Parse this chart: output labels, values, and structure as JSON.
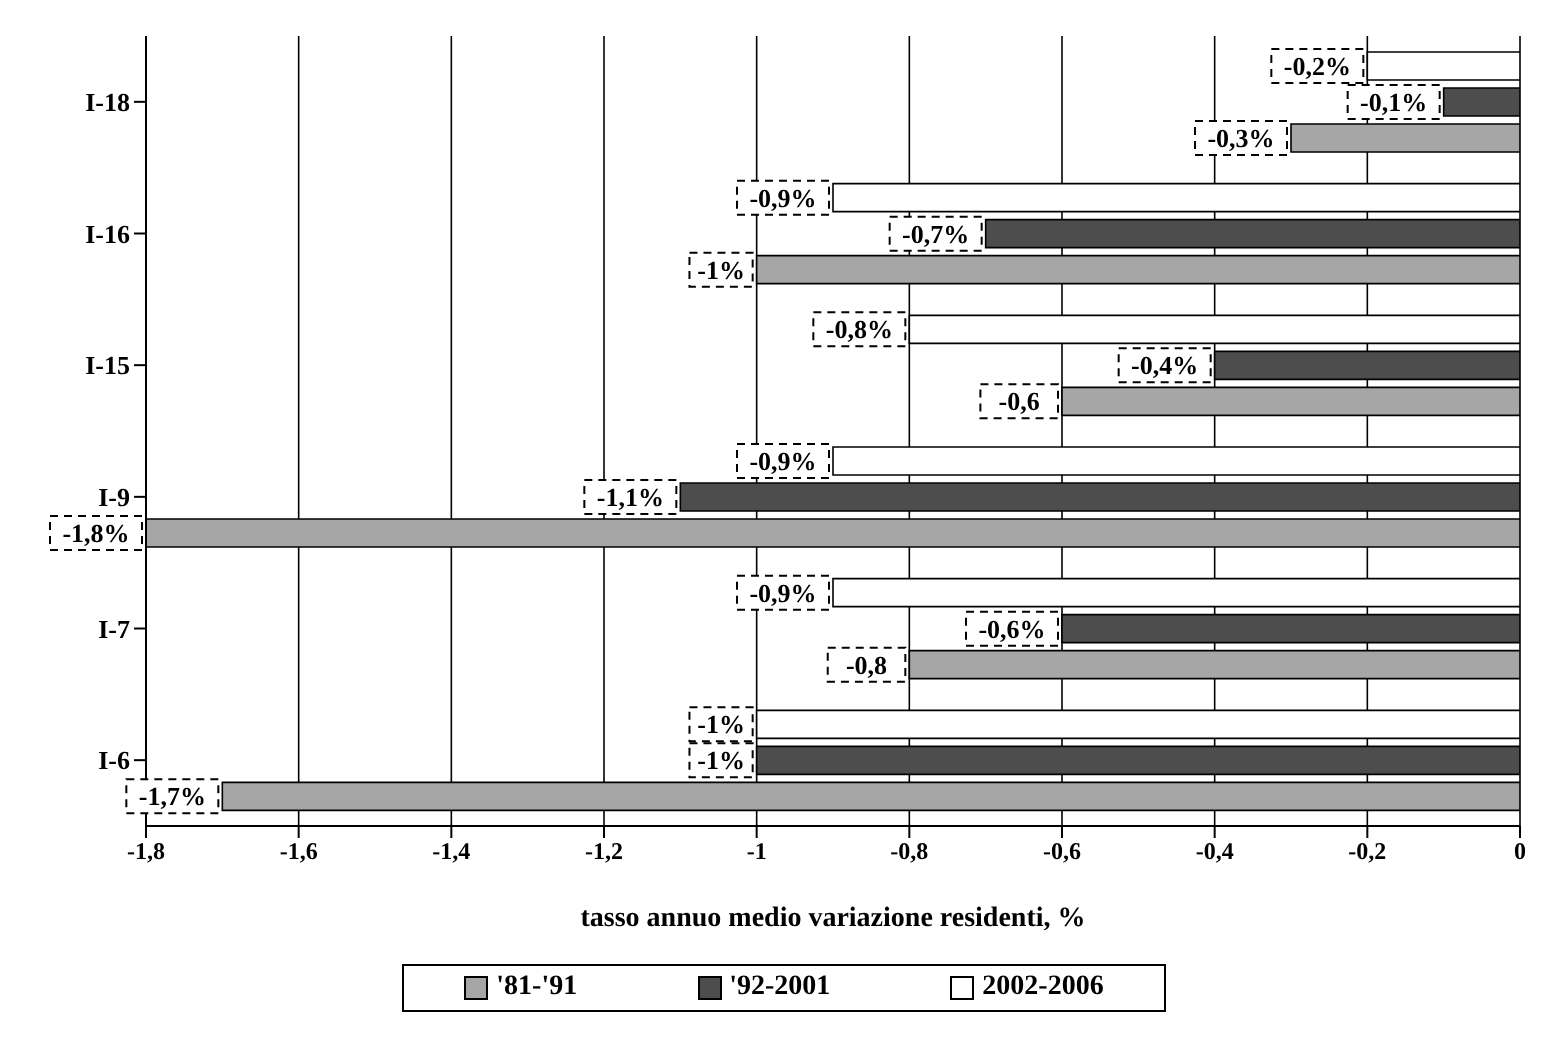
{
  "chart_data": {
    "type": "bar",
    "orientation": "horizontal",
    "xlabel": "tasso annuo medio variazione residenti, %",
    "categories": [
      "I-18",
      "I-16",
      "I-15",
      "I-9",
      "I-7",
      "I-6"
    ],
    "series": [
      {
        "name": "'81-'91",
        "color": "#a6a6a6",
        "values": [
          -0.3,
          -1,
          -0.6,
          -1.8,
          -0.8,
          -1.7
        ],
        "value_labels": [
          "-0,3%",
          "-1%",
          "-0,6",
          "-1,8%",
          "-0,8",
          "-1,7%"
        ]
      },
      {
        "name": "'92-2001",
        "color": "#4d4d4d",
        "values": [
          -0.1,
          -0.7,
          -0.4,
          -1.1,
          -0.6,
          -1
        ],
        "value_labels": [
          "-0,1%",
          "-0,7%",
          "-0,4%",
          "-1,1%",
          "-0,6%",
          "-1%"
        ]
      },
      {
        "name": "2002-2006",
        "color": "#ffffff",
        "values": [
          -0.2,
          -0.9,
          -0.8,
          -0.9,
          -0.9,
          -1
        ],
        "value_labels": [
          "-0,2%",
          "-0,9%",
          "-0,8%",
          "-0,9%",
          "-0,9%",
          "-1%"
        ]
      }
    ],
    "xlim": [
      -1.8,
      0
    ],
    "xticks": [
      {
        "value": -1.8,
        "label": "-1,8"
      },
      {
        "value": -1.6,
        "label": "-1,6"
      },
      {
        "value": -1.4,
        "label": "-1,4"
      },
      {
        "value": -1.2,
        "label": "-1,2"
      },
      {
        "value": -1,
        "label": "-1"
      },
      {
        "value": -0.8,
        "label": "-0,8"
      },
      {
        "value": -0.6,
        "label": "-0,6"
      },
      {
        "value": -0.4,
        "label": "-0,4"
      },
      {
        "value": -0.2,
        "label": "-0,2"
      },
      {
        "value": 0,
        "label": "0"
      }
    ],
    "grid": "x",
    "legend": "bottom"
  }
}
